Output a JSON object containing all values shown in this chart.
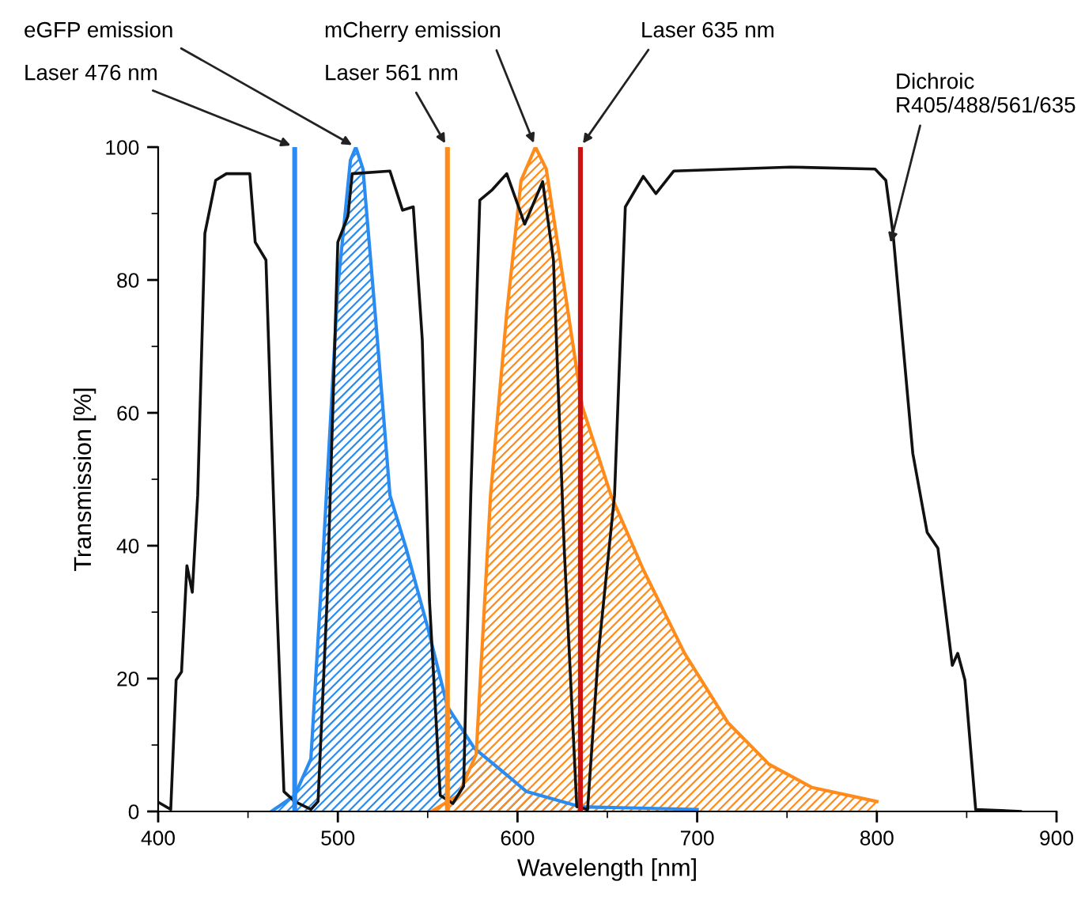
{
  "chart_data": {
    "type": "line",
    "xlabel": "Wavelength [nm]",
    "ylabel": "Transmission [%]",
    "xlim": [
      400,
      900
    ],
    "xticks": [
      400,
      500,
      600,
      700,
      800,
      900
    ],
    "ylim": [
      0,
      100
    ],
    "yticks": [
      0,
      20,
      40,
      60,
      80,
      100
    ],
    "grid": false,
    "legend": false,
    "series": [
      {
        "type": "area",
        "color": "#2a8cf0",
        "x": [
          463,
          476,
          485,
          492,
          500,
          507,
          510,
          514,
          522,
          529,
          538,
          550,
          561,
          576,
          594,
          605,
          635,
          700
        ],
        "values": [
          0,
          2.4,
          7.9,
          39.6,
          79,
          98,
          100,
          96.7,
          71,
          47.6,
          39.6,
          27.7,
          15.8,
          9.5,
          5.5,
          3,
          0.7,
          0.3
        ]
      },
      {
        "type": "area",
        "color": "#ff8c1a",
        "x": [
          552,
          567,
          577,
          585,
          594,
          602,
          610,
          616,
          626,
          636,
          652,
          670,
          693,
          717,
          740,
          764,
          800
        ],
        "values": [
          0,
          2.4,
          8.6,
          47.6,
          75,
          95,
          100,
          96.7,
          79,
          61,
          47.6,
          36.4,
          23.8,
          13.4,
          7.1,
          3.6,
          1.5
        ]
      },
      {
        "color": "#111111",
        "x": [
          400,
          407,
          410,
          413,
          416,
          419,
          422,
          426,
          432,
          438,
          451,
          454,
          460,
          466,
          470,
          476,
          485,
          489,
          494,
          500,
          505.6,
          508,
          529,
          536,
          542,
          547,
          551,
          557,
          564,
          570,
          574,
          579,
          586,
          594,
          604,
          614,
          620,
          626,
          633,
          639,
          645,
          654,
          660,
          670,
          677,
          687,
          752,
          799,
          805,
          809,
          820,
          828,
          834,
          842,
          845,
          849,
          855,
          880
        ],
        "values": [
          1.4,
          0.3,
          19.8,
          21,
          37,
          33,
          47.6,
          87,
          95,
          96,
          96,
          85.7,
          83,
          31.7,
          3,
          1.5,
          0.3,
          1.5,
          31.7,
          85.7,
          89.6,
          96,
          96.4,
          90.5,
          91,
          71,
          31.7,
          2.4,
          1.2,
          3.8,
          47.6,
          92,
          93.6,
          96,
          88.4,
          94.8,
          83,
          39.6,
          0.7,
          0.3,
          23.8,
          47.6,
          91,
          95.6,
          93,
          96.4,
          97,
          96.7,
          95,
          87,
          53.9,
          42,
          39.6,
          22,
          23.8,
          19.8,
          0.3,
          0
        ]
      }
    ],
    "ref_lines": [
      {
        "axis": "x",
        "value": 476,
        "color": "#2a8cf0"
      },
      {
        "axis": "x",
        "value": 561,
        "color": "#ff8c1a"
      },
      {
        "axis": "x",
        "value": 635,
        "color": "#cc1111"
      }
    ],
    "annotations": [
      {
        "text": "eGFP emission",
        "x": 510,
        "y": 100
      },
      {
        "text": "Laser 476 nm",
        "x": 476,
        "y": 100
      },
      {
        "text": "mCherry emission",
        "x": 610,
        "y": 100
      },
      {
        "text": "Laser 561 nm",
        "x": 561,
        "y": 100
      },
      {
        "text": "Laser 635 nm",
        "x": 635,
        "y": 100
      },
      {
        "text": "Dichroic\nR405/488/561/635",
        "x": 807,
        "y": 85
      }
    ]
  }
}
